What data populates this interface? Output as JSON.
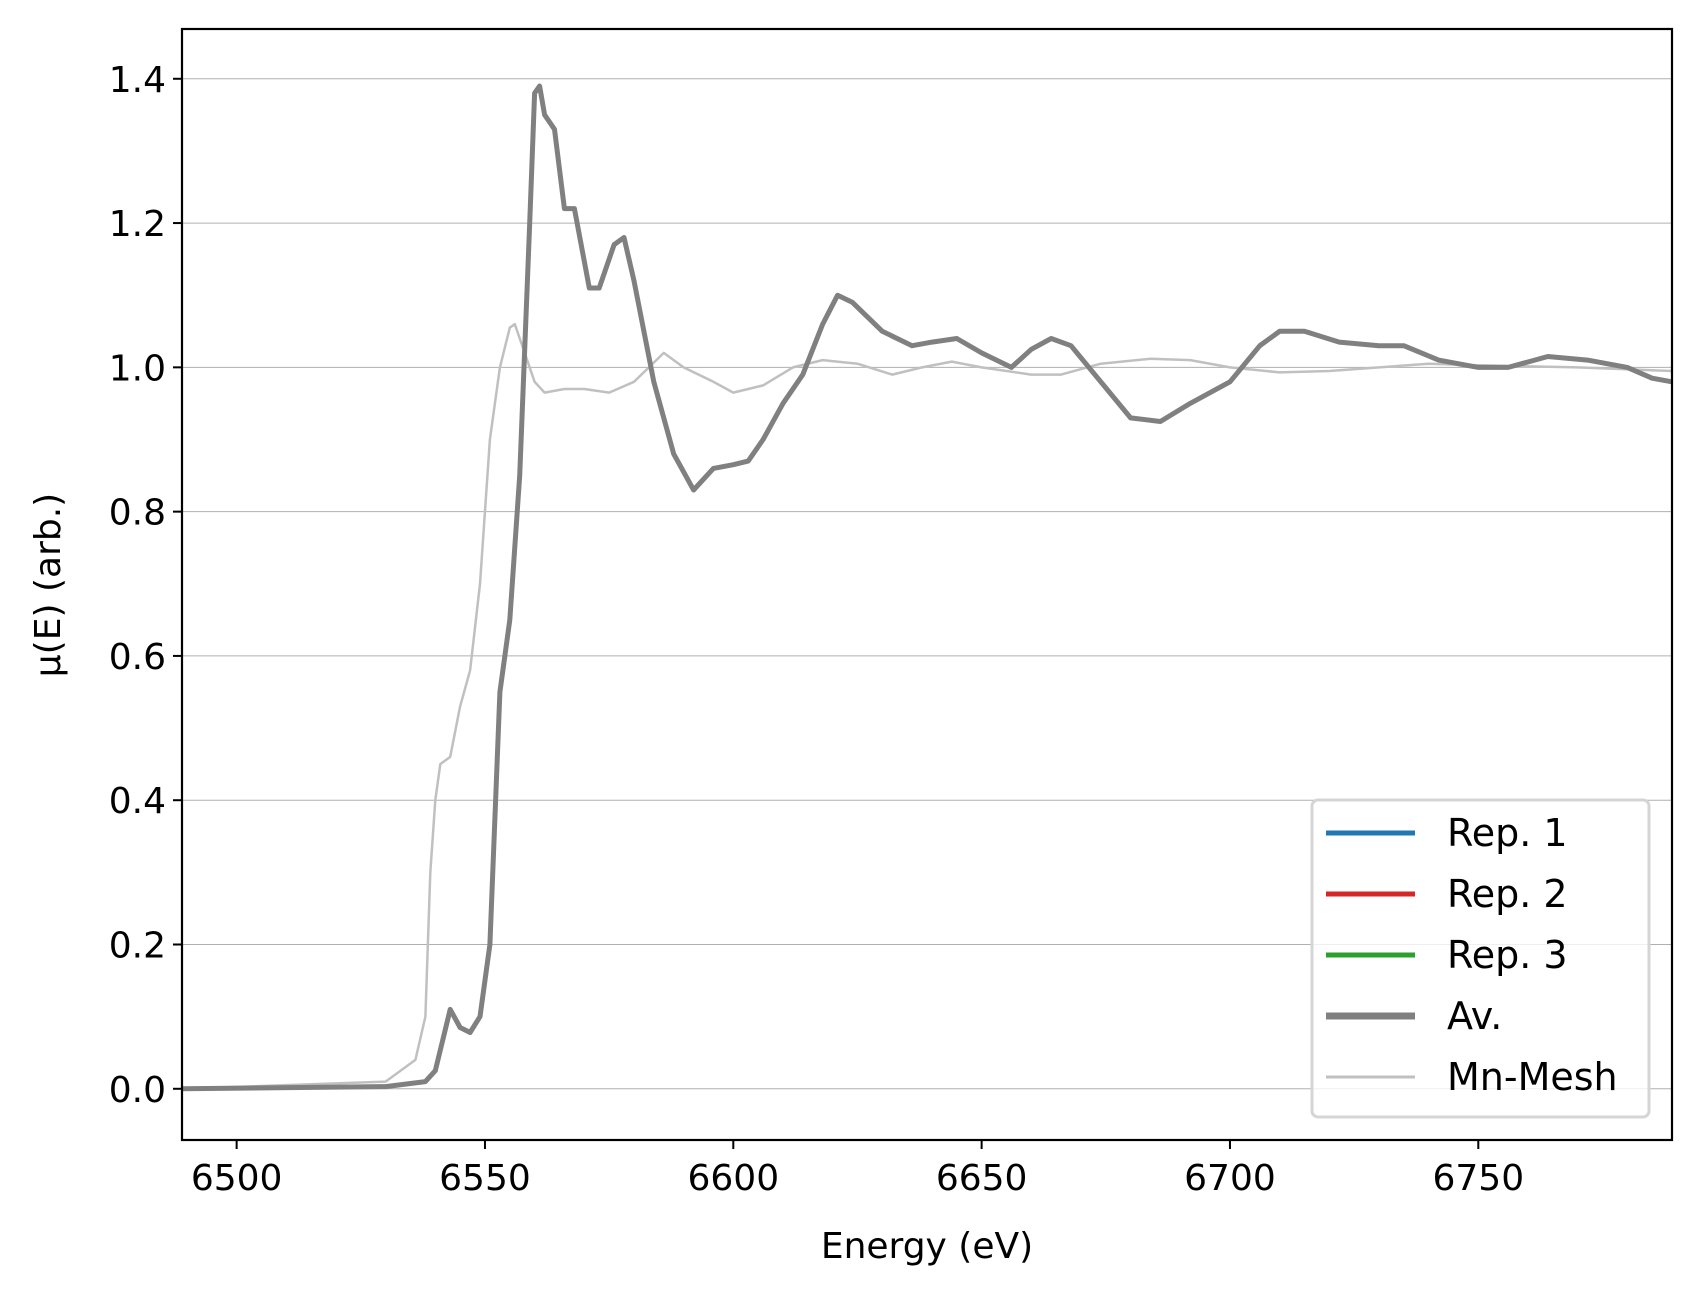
{
  "chart_data": {
    "type": "line",
    "title": "",
    "xlabel": "Energy (eV)",
    "ylabel": "μ(E) (arb.)",
    "xlim": [
      6489,
      6789
    ],
    "ylim": [
      -0.071,
      1.469
    ],
    "xticks": [
      6500,
      6550,
      6600,
      6650,
      6700,
      6750
    ],
    "yticks": [
      0.0,
      0.2,
      0.4,
      0.6,
      0.8,
      1.0,
      1.2,
      1.4
    ],
    "ytick_labels": [
      "0.0",
      "0.2",
      "0.4",
      "0.6",
      "0.8",
      "1.0",
      "1.2",
      "1.4"
    ],
    "grid": "horizontal",
    "legend_position": "lower-right",
    "series": [
      {
        "name": "Rep. 1",
        "color": "#1f77b4",
        "x": [],
        "y": []
      },
      {
        "name": "Rep. 2",
        "color": "#d62728",
        "x": [],
        "y": []
      },
      {
        "name": "Rep. 3",
        "color": "#2ca02c",
        "x": [],
        "y": []
      },
      {
        "name": "Mn-Mesh",
        "color": "#c0c0c0",
        "x": [
          6489,
          6530,
          6536,
          6538,
          6539,
          6540,
          6541,
          6543,
          6545,
          6547,
          6549,
          6551,
          6553,
          6555,
          6556,
          6558,
          6560,
          6562,
          6566,
          6570,
          6575,
          6580,
          6586,
          6590,
          6596,
          6600,
          6606,
          6612,
          6618,
          6625,
          6632,
          6638,
          6644,
          6650,
          6660,
          6666,
          6674,
          6684,
          6692,
          6700,
          6710,
          6720,
          6730,
          6740,
          6750,
          6770,
          6789
        ],
        "y": [
          0,
          0.01,
          0.04,
          0.1,
          0.3,
          0.4,
          0.45,
          0.46,
          0.53,
          0.58,
          0.7,
          0.9,
          1.0,
          1.055,
          1.06,
          1.02,
          0.98,
          0.965,
          0.97,
          0.97,
          0.965,
          0.98,
          1.02,
          1.0,
          0.98,
          0.965,
          0.975,
          1.0,
          1.01,
          1.005,
          0.99,
          1.0,
          1.008,
          1.0,
          0.99,
          0.99,
          1.005,
          1.012,
          1.01,
          1.0,
          0.993,
          0.995,
          1.0,
          1.005,
          1.003,
          1.0,
          0.995
        ]
      },
      {
        "name": "Av.",
        "color": "#808080",
        "x": [
          6489,
          6530,
          6538,
          6540,
          6543,
          6545,
          6547,
          6549,
          6551,
          6553,
          6555,
          6557,
          6559,
          6560,
          6561,
          6562,
          6564,
          6566,
          6568,
          6571,
          6573,
          6576,
          6578,
          6580,
          6584,
          6588,
          6592,
          6596,
          6600,
          6603,
          6606,
          6610,
          6614,
          6618,
          6621,
          6624,
          6630,
          6636,
          6640,
          6645,
          6650,
          6656,
          6660,
          6664,
          6668,
          6674,
          6680,
          6686,
          6692,
          6700,
          6706,
          6710,
          6715,
          6722,
          6730,
          6735,
          6742,
          6750,
          6756,
          6764,
          6772,
          6780,
          6785,
          6789
        ],
        "y": [
          0,
          0.003,
          0.01,
          0.025,
          0.11,
          0.085,
          0.078,
          0.1,
          0.2,
          0.55,
          0.65,
          0.85,
          1.2,
          1.38,
          1.39,
          1.35,
          1.33,
          1.22,
          1.22,
          1.11,
          1.11,
          1.17,
          1.18,
          1.12,
          0.98,
          0.88,
          0.83,
          0.86,
          0.865,
          0.87,
          0.9,
          0.95,
          0.99,
          1.06,
          1.1,
          1.09,
          1.05,
          1.03,
          1.035,
          1.04,
          1.02,
          1.0,
          1.025,
          1.04,
          1.03,
          0.98,
          0.93,
          0.925,
          0.95,
          0.98,
          1.03,
          1.05,
          1.05,
          1.035,
          1.03,
          1.03,
          1.01,
          1.0,
          1.0,
          1.015,
          1.01,
          1.0,
          0.985,
          0.98
        ]
      }
    ],
    "legend": [
      "Rep. 1",
      "Rep. 2",
      "Rep. 3",
      "Av.",
      "Mn-Mesh"
    ]
  }
}
